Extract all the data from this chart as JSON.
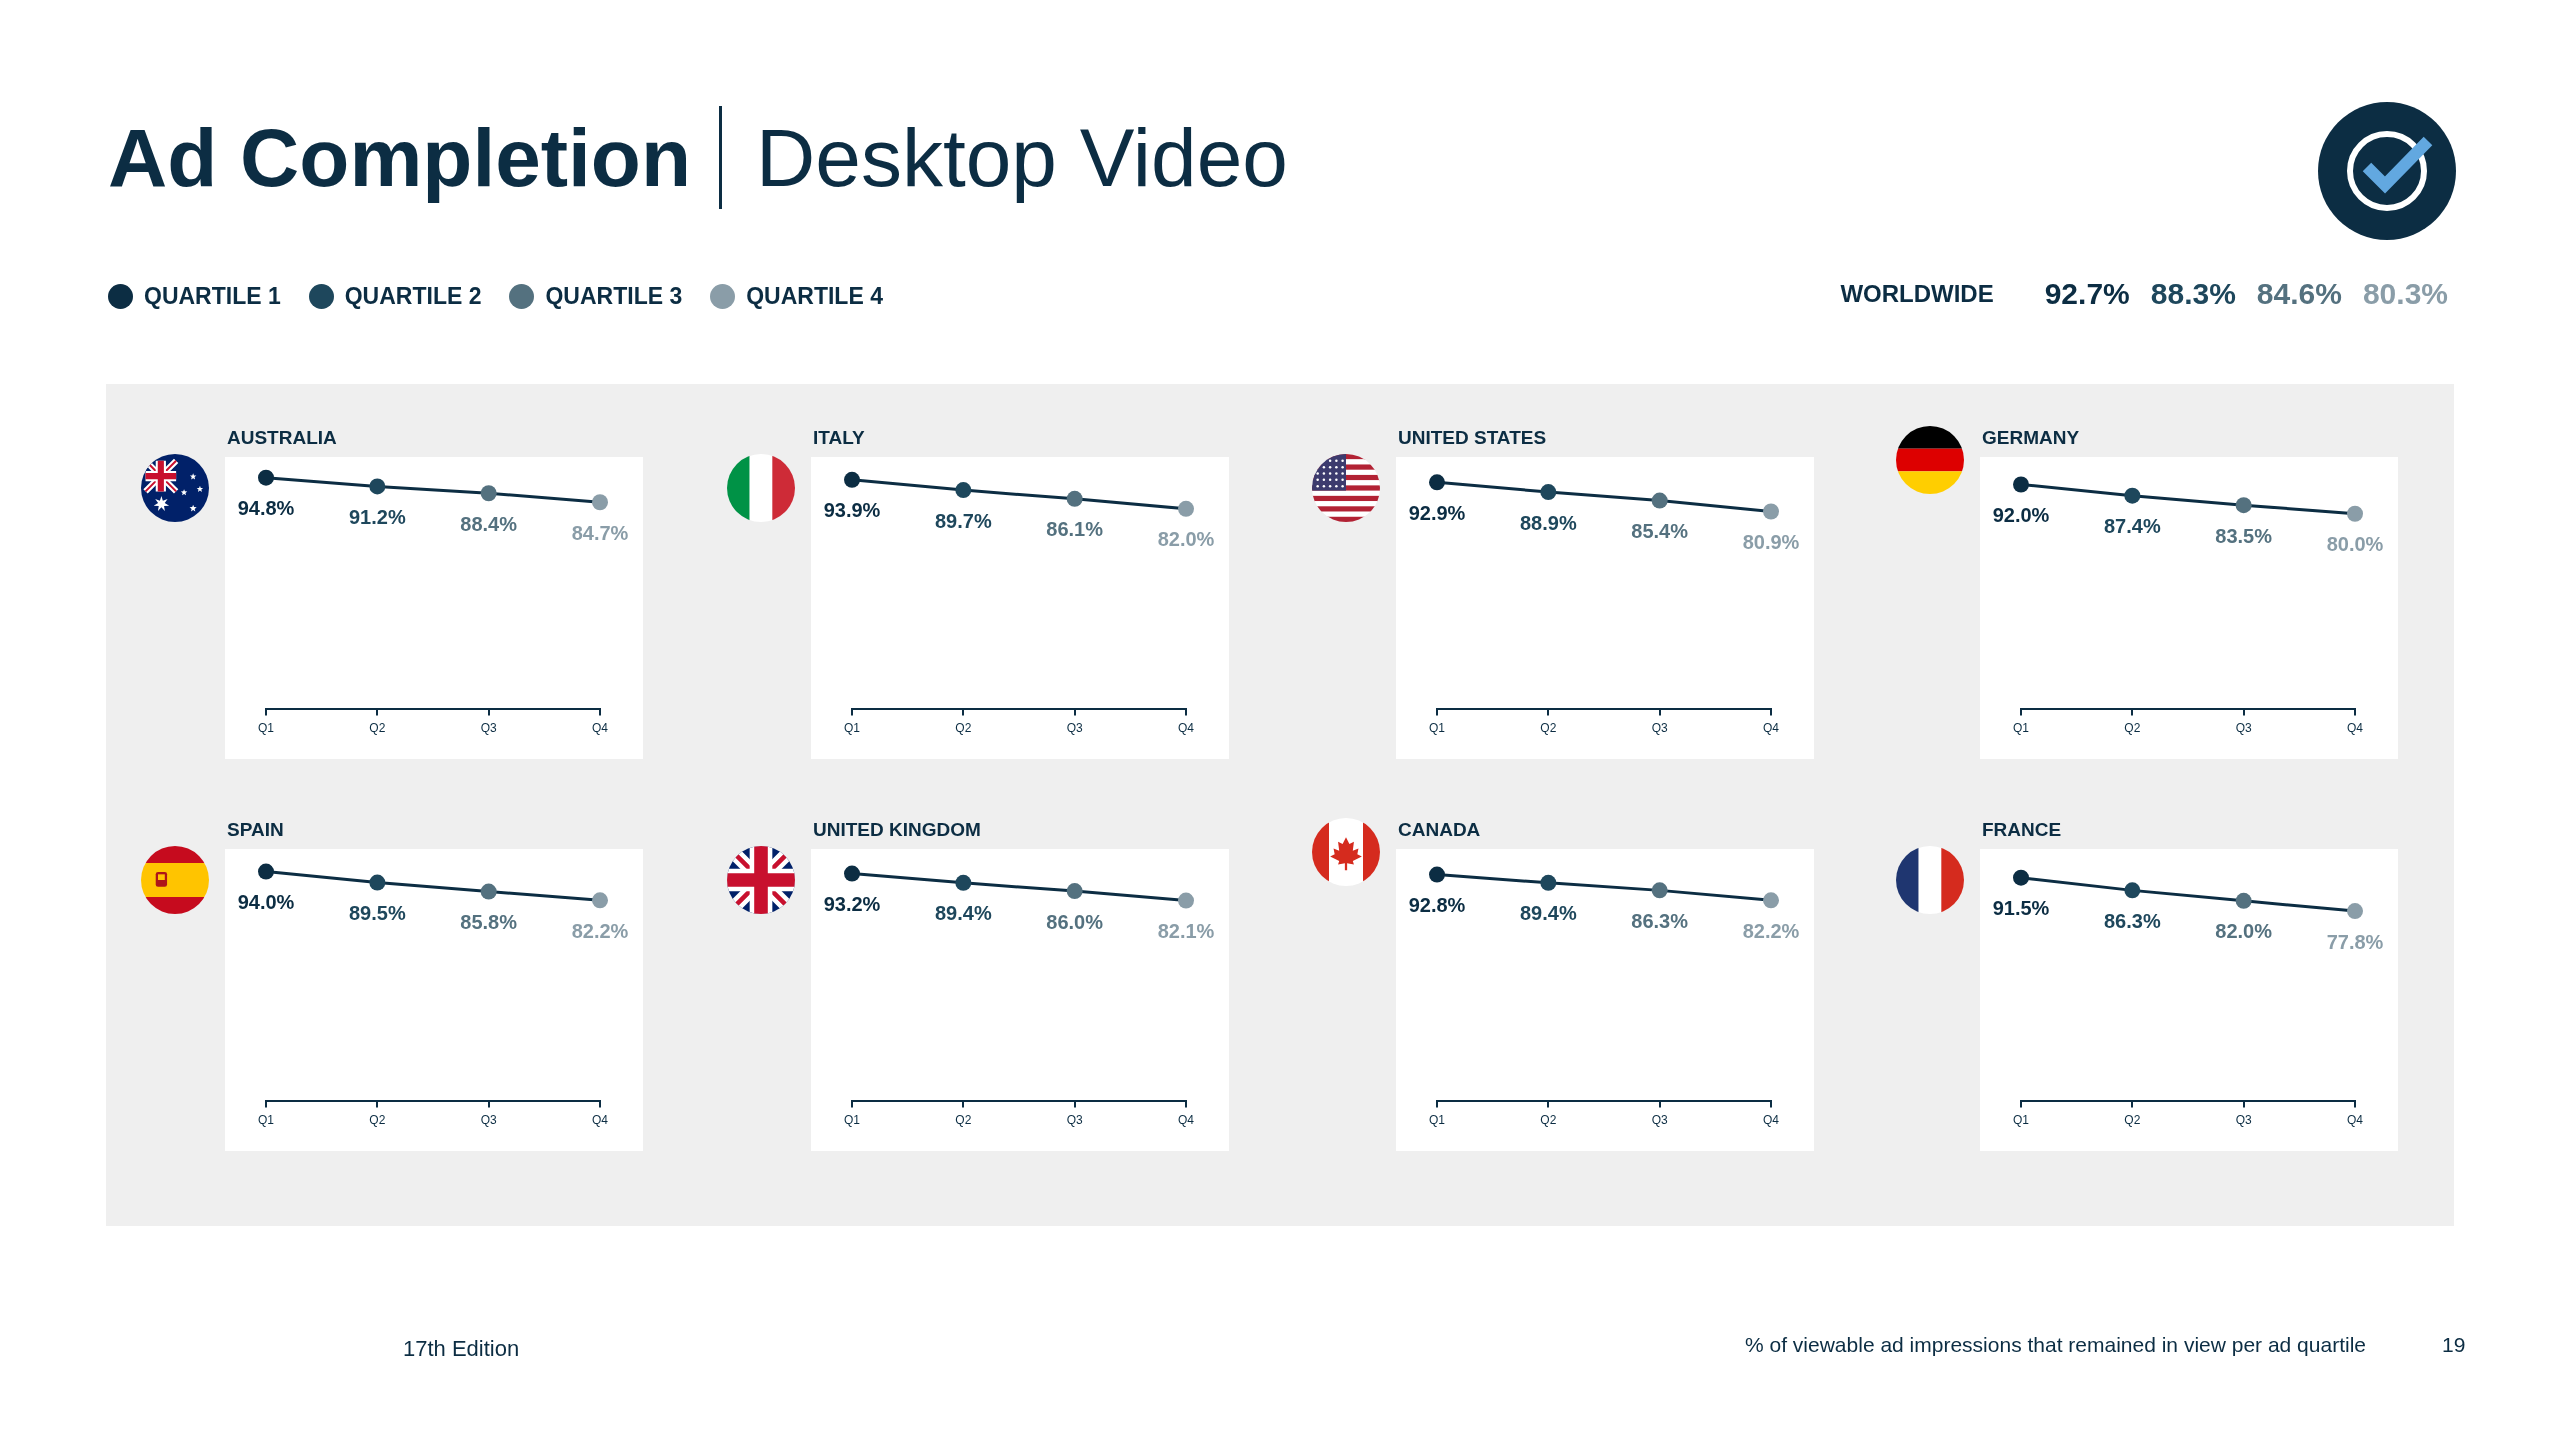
{
  "chart_data": [
    {
      "type": "other",
      "title": "Ad Completion",
      "subtitle": "Desktop Video",
      "categories": [
        "WORLDWIDE"
      ],
      "legend": "top left",
      "series": [
        {
          "name": "QUARTILE 1",
          "color": "#0c2d43",
          "values": [
            92.7
          ],
          "value_labels": [
            "92.7%"
          ]
        },
        {
          "name": "QUARTILE 2",
          "color": "#1e475c",
          "values": [
            88.3
          ],
          "value_labels": [
            "88.3%"
          ]
        },
        {
          "name": "QUARTILE 3",
          "color": "#54717f",
          "values": [
            84.6
          ],
          "value_labels": [
            "84.6%"
          ]
        },
        {
          "name": "QUARTILE 4",
          "color": "#8a9da8",
          "values": [
            80.3
          ],
          "value_labels": [
            "80.3%"
          ]
        }
      ],
      "annotations": [
        "17th Edition",
        "% of viewable ad impressions that remained in view per ad quartile",
        "19"
      ]
    },
    {
      "type": "line",
      "title": "AUSTRALIA",
      "categories": [
        "Q1",
        "Q2",
        "Q3",
        "Q4"
      ],
      "marker": "circle",
      "line_style": "solid",
      "tick_labels": "x",
      "series": [
        {
          "color": "#0c2d43",
          "colors": [
            "#0c2d43",
            "#1e475c",
            "#54717f",
            "#8a9da8"
          ],
          "values": [
            94.8,
            91.2,
            88.4,
            84.7
          ],
          "value_labels": [
            "94.8%",
            "91.2%",
            "88.4%",
            "84.7%"
          ]
        }
      ]
    },
    {
      "type": "line",
      "title": "ITALY",
      "categories": [
        "Q1",
        "Q2",
        "Q3",
        "Q4"
      ],
      "marker": "circle",
      "line_style": "solid",
      "tick_labels": "x",
      "series": [
        {
          "color": "#0c2d43",
          "colors": [
            "#0c2d43",
            "#1e475c",
            "#54717f",
            "#8a9da8"
          ],
          "values": [
            93.9,
            89.7,
            86.1,
            82.0
          ],
          "value_labels": [
            "93.9%",
            "89.7%",
            "86.1%",
            "82.0%"
          ]
        }
      ]
    },
    {
      "type": "line",
      "title": "UNITED STATES",
      "categories": [
        "Q1",
        "Q2",
        "Q3",
        "Q4"
      ],
      "marker": "circle",
      "line_style": "solid",
      "tick_labels": "x",
      "series": [
        {
          "color": "#0c2d43",
          "colors": [
            "#0c2d43",
            "#1e475c",
            "#54717f",
            "#8a9da8"
          ],
          "values": [
            92.9,
            88.9,
            85.4,
            80.9
          ],
          "value_labels": [
            "92.9%",
            "88.9%",
            "85.4%",
            "80.9%"
          ]
        }
      ]
    },
    {
      "type": "line",
      "title": "GERMANY",
      "categories": [
        "Q1",
        "Q2",
        "Q3",
        "Q4"
      ],
      "marker": "circle",
      "line_style": "solid",
      "tick_labels": "x",
      "series": [
        {
          "color": "#0c2d43",
          "colors": [
            "#0c2d43",
            "#1e475c",
            "#54717f",
            "#8a9da8"
          ],
          "values": [
            92.0,
            87.4,
            83.5,
            80.0
          ],
          "value_labels": [
            "92.0%",
            "87.4%",
            "83.5%",
            "80.0%"
          ]
        }
      ]
    },
    {
      "type": "line",
      "title": "SPAIN",
      "categories": [
        "Q1",
        "Q2",
        "Q3",
        "Q4"
      ],
      "marker": "circle",
      "line_style": "solid",
      "tick_labels": "x",
      "series": [
        {
          "color": "#0c2d43",
          "colors": [
            "#0c2d43",
            "#1e475c",
            "#54717f",
            "#8a9da8"
          ],
          "values": [
            94.0,
            89.5,
            85.8,
            82.2
          ],
          "value_labels": [
            "94.0%",
            "89.5%",
            "85.8%",
            "82.2%"
          ]
        }
      ]
    },
    {
      "type": "line",
      "title": "UNITED KINGDOM",
      "categories": [
        "Q1",
        "Q2",
        "Q3",
        "Q4"
      ],
      "marker": "circle",
      "line_style": "solid",
      "tick_labels": "x",
      "series": [
        {
          "color": "#0c2d43",
          "colors": [
            "#0c2d43",
            "#1e475c",
            "#54717f",
            "#8a9da8"
          ],
          "values": [
            93.2,
            89.4,
            86.0,
            82.1
          ],
          "value_labels": [
            "93.2%",
            "89.4%",
            "86.0%",
            "82.1%"
          ]
        }
      ]
    },
    {
      "type": "line",
      "title": "CANADA",
      "categories": [
        "Q1",
        "Q2",
        "Q3",
        "Q4"
      ],
      "marker": "circle",
      "line_style": "solid",
      "tick_labels": "x",
      "series": [
        {
          "color": "#0c2d43",
          "colors": [
            "#0c2d43",
            "#1e475c",
            "#54717f",
            "#8a9da8"
          ],
          "values": [
            92.8,
            89.4,
            86.3,
            82.2
          ],
          "value_labels": [
            "92.8%",
            "89.4%",
            "86.3%",
            "82.2%"
          ]
        }
      ]
    },
    {
      "type": "line",
      "title": "FRANCE",
      "categories": [
        "Q1",
        "Q2",
        "Q3",
        "Q4"
      ],
      "marker": "circle",
      "line_style": "solid",
      "tick_labels": "x",
      "series": [
        {
          "color": "#0c2d43",
          "colors": [
            "#0c2d43",
            "#1e475c",
            "#54717f",
            "#8a9da8"
          ],
          "values": [
            91.5,
            86.3,
            82.0,
            77.8
          ],
          "value_labels": [
            "91.5%",
            "86.3%",
            "82.0%",
            "77.8%"
          ]
        }
      ]
    }
  ]
}
